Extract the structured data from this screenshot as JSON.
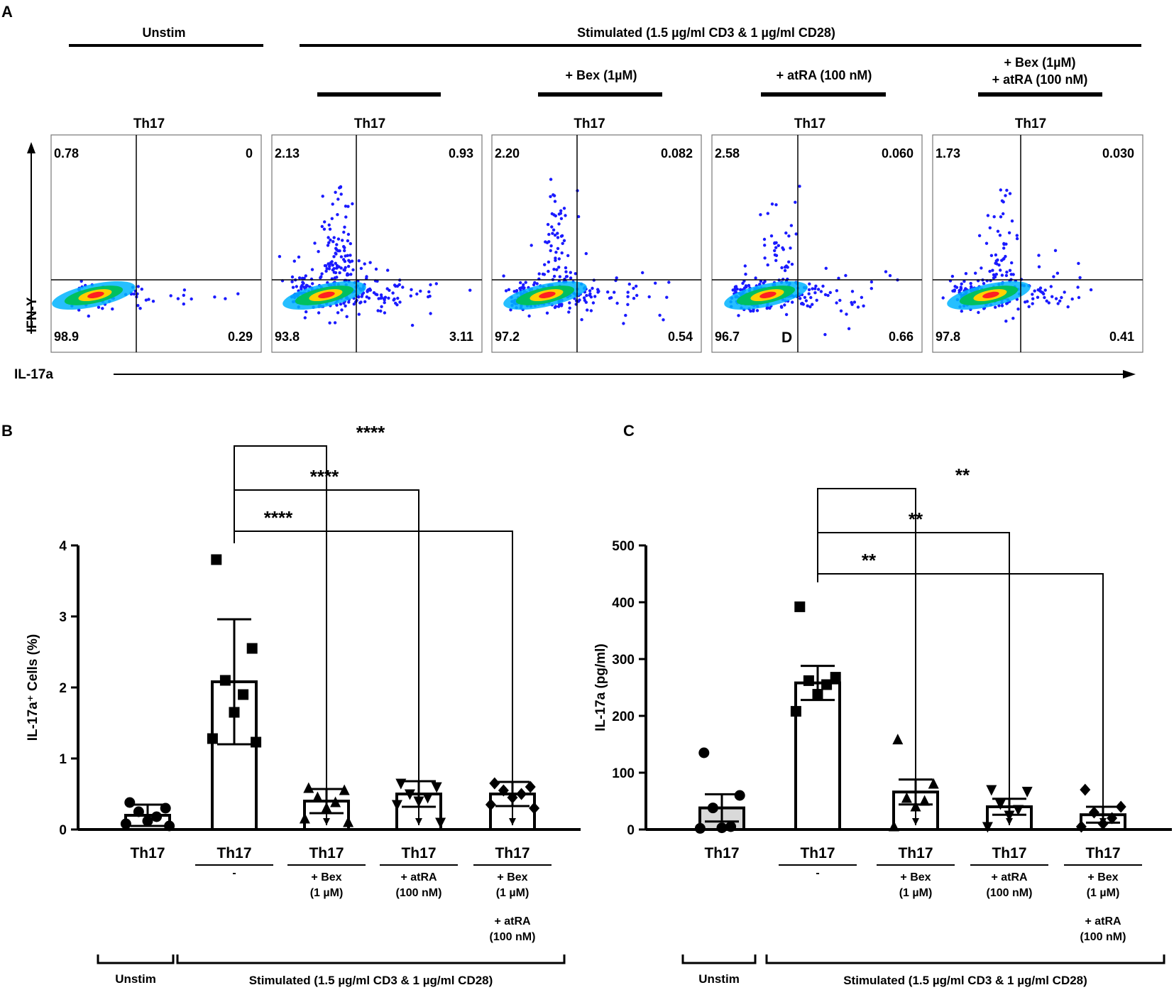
{
  "panels": {
    "a": "A",
    "b": "B",
    "c": "C"
  },
  "panel_a": {
    "unstim_label": "Unstim",
    "stim_label": "Stimulated (1.5 µg/ml CD3 & 1 µg/ml CD28)",
    "cond_bex": "+ Bex (1µM)",
    "cond_atra": "+ atRA  (100 nM)",
    "cond_combo_1": "+ Bex (1µM)",
    "cond_combo_2": "+ atRA  (100 nM)",
    "y_axis": "IFN-Y",
    "x_axis": "IL-17a",
    "stray_label": "D",
    "plots": [
      {
        "title": "Th17",
        "ul": "0.78",
        "ur": "0",
        "ll": "98.9",
        "lr": "0.29"
      },
      {
        "title": "Th17",
        "ul": "2.13",
        "ur": "0.93",
        "ll": "93.8",
        "lr": "3.11"
      },
      {
        "title": "Th17",
        "ul": "2.20",
        "ur": "0.082",
        "ll": "97.2",
        "lr": "0.54"
      },
      {
        "title": "Th17",
        "ul": "2.58",
        "ur": "0.060",
        "ll": "96.7",
        "lr": "0.66"
      },
      {
        "title": "Th17",
        "ul": "1.73",
        "ur": "0.030",
        "ll": "97.8",
        "lr": "0.41"
      }
    ]
  },
  "chart_data": [
    {
      "type": "bar",
      "panel": "B",
      "ylabel": "IL-17a⁺ Cells (%)",
      "ylim": [
        0,
        4
      ],
      "yticks": [
        "0",
        "1",
        "2",
        "3",
        "4"
      ],
      "categories": [
        "Th17",
        "Th17",
        "Th17",
        "Th17",
        "Th17"
      ],
      "conditions": [
        "",
        "-",
        "+ Bex (1 µM)",
        "+ atRA (100 nM)",
        "+ Bex (1 µM) + atRA (100 nM)"
      ],
      "means": [
        0.2,
        2.08,
        0.4,
        0.5,
        0.5
      ],
      "errors": [
        0.15,
        0.88,
        0.17,
        0.18,
        0.17
      ],
      "markers": [
        "circle",
        "square",
        "triangle-up",
        "triangle-down",
        "diamond"
      ],
      "points": [
        [
          0.38,
          0.3,
          0.25,
          0.18,
          0.12,
          0.08,
          0.05
        ],
        [
          3.8,
          2.55,
          2.1,
          1.9,
          1.65,
          1.28,
          1.23
        ],
        [
          0.58,
          0.55,
          0.45,
          0.38,
          0.3,
          0.15,
          0.1
        ],
        [
          0.65,
          0.6,
          0.5,
          0.45,
          0.4,
          0.35,
          0.1
        ],
        [
          0.65,
          0.6,
          0.55,
          0.5,
          0.45,
          0.35,
          0.3
        ]
      ],
      "comparisons": [
        {
          "from": 1,
          "to": 2,
          "label": "****"
        },
        {
          "from": 1,
          "to": 3,
          "label": "****"
        },
        {
          "from": 1,
          "to": 4,
          "label": "****"
        }
      ],
      "group_unstim": "Unstim",
      "group_stim": "Stimulated (1.5 µg/ml CD3 & 1 µg/ml CD28)"
    },
    {
      "type": "bar",
      "panel": "C",
      "ylabel": "IL-17a (pg/ml)",
      "ylim": [
        0,
        500
      ],
      "yticks": [
        "0",
        "100",
        "200",
        "300",
        "400",
        "500"
      ],
      "categories": [
        "Th17",
        "Th17",
        "Th17",
        "Th17",
        "Th17"
      ],
      "conditions": [
        "",
        "-",
        "+ Bex (1 µM)",
        "+ atRA (100 nM)",
        "+ Bex (1 µM) + atRA (100 nM)"
      ],
      "means": [
        38,
        258,
        66,
        40,
        26
      ],
      "errors": [
        24,
        30,
        22,
        14,
        14
      ],
      "markers": [
        "circle",
        "square",
        "triangle-up",
        "triangle-down",
        "diamond"
      ],
      "points": [
        [
          135,
          60,
          38,
          5,
          3,
          2
        ],
        [
          392,
          268,
          262,
          255,
          238,
          208
        ],
        [
          158,
          80,
          55,
          50,
          40,
          5
        ],
        [
          70,
          67,
          45,
          35,
          25,
          5
        ],
        [
          70,
          40,
          30,
          20,
          10,
          5
        ]
      ],
      "comparisons": [
        {
          "from": 1,
          "to": 2,
          "label": "**"
        },
        {
          "from": 1,
          "to": 3,
          "label": "**"
        },
        {
          "from": 1,
          "to": 4,
          "label": "**"
        }
      ],
      "group_unstim": "Unstim",
      "group_stim": "Stimulated (1.5 µg/ml CD3 & 1 µg/ml CD28)"
    }
  ],
  "colors": {
    "dots": "#1a1aff",
    "density_mid": "#00c060",
    "density_hot": "#ff2020",
    "density_warm": "#ffd000",
    "unstim_fill_c": "#d9d9d9"
  }
}
